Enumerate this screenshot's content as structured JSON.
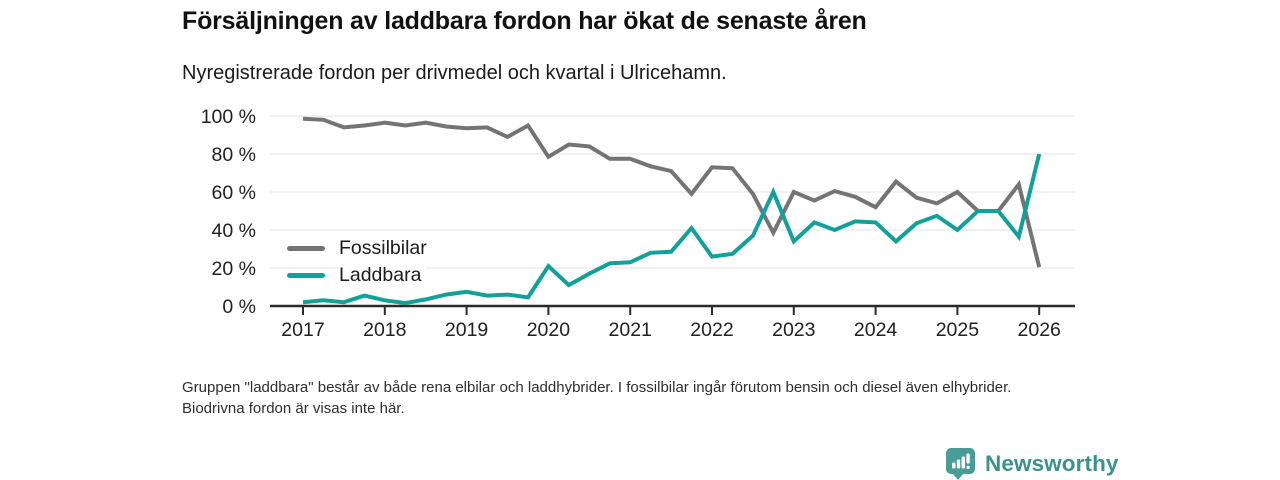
{
  "chart_data": {
    "type": "line",
    "title": "Försäljningen av laddbara fordon har ökat de senaste åren",
    "subtitle": "Nyregistrerade fordon per drivmedel och kvartal i Ulricehamn.",
    "x": [
      2017,
      2017.25,
      2017.5,
      2017.75,
      2018,
      2018.25,
      2018.5,
      2018.75,
      2019,
      2019.25,
      2019.5,
      2019.75,
      2020,
      2020.25,
      2020.5,
      2020.75,
      2021,
      2021.25,
      2021.5,
      2021.75,
      2022,
      2022.25,
      2022.5,
      2022.75,
      2023,
      2023.25,
      2023.5,
      2023.75,
      2024,
      2024.25,
      2024.5,
      2024.75,
      2025,
      2025.25,
      2025.5,
      2025.75,
      2026
    ],
    "series": [
      {
        "name": "Fossilbilar",
        "color": "#747474",
        "values": [
          98.5,
          98,
          94,
          95,
          96.5,
          95,
          96.5,
          94.5,
          93.5,
          94,
          89,
          95,
          78.5,
          85,
          84,
          77.5,
          77.5,
          73.5,
          71,
          59,
          73,
          72.5,
          59,
          38.5,
          60,
          55.5,
          60.5,
          57.5,
          52,
          65.5,
          57,
          54,
          60,
          50,
          50,
          64,
          20.5
        ]
      },
      {
        "name": "Laddbara",
        "color": "#12a19a",
        "values": [
          2,
          3,
          2,
          5.5,
          3,
          1.5,
          3.5,
          6,
          7.5,
          5.5,
          6,
          4.5,
          21,
          11,
          17,
          22.5,
          23,
          28,
          28.5,
          41,
          26,
          27.5,
          37,
          60,
          34,
          44,
          40,
          44.5,
          44,
          34,
          43.5,
          47.5,
          40,
          50,
          50,
          36.5,
          80
        ]
      }
    ],
    "x_tick_labels": [
      "2017",
      "2018",
      "2019",
      "2020",
      "2021",
      "2022",
      "2023",
      "2024",
      "2025",
      "2026"
    ],
    "y_tick_values": [
      0,
      20,
      40,
      60,
      80,
      100
    ],
    "y_tick_labels": [
      "0 %",
      "20 %",
      "40 %",
      "60 %",
      "80 %",
      "100 %"
    ],
    "ylim": [
      0,
      100
    ],
    "grid": true,
    "legend_position": "inside-left"
  },
  "footer": {
    "note": "Gruppen \"laddbara\" består av både rena elbilar och laddhybrider. I fossilbilar ingår förutom bensin och diesel även elhybrider. Biodrivna fordon är visas inte här."
  },
  "branding": {
    "name": "Newsworthy",
    "icon": "newsworthy-chart-bubble-icon",
    "icon_color": "#4a9c98",
    "text_color": "#3d918c"
  }
}
